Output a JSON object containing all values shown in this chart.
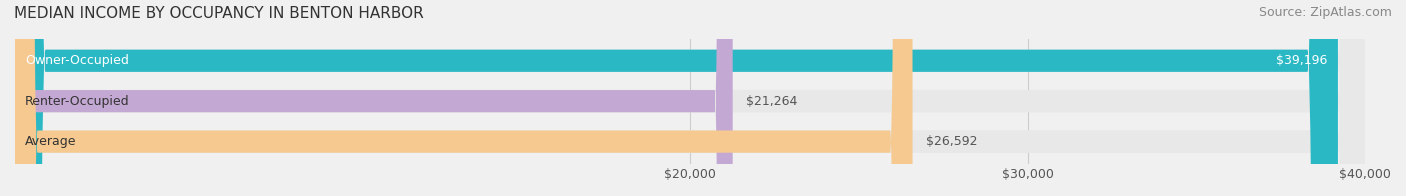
{
  "title": "MEDIAN INCOME BY OCCUPANCY IN BENTON HARBOR",
  "source": "Source: ZipAtlas.com",
  "categories": [
    "Owner-Occupied",
    "Renter-Occupied",
    "Average"
  ],
  "values": [
    39196,
    21264,
    26592
  ],
  "bar_colors": [
    "#2ab8c4",
    "#c4a8d4",
    "#f5c990"
  ],
  "bar_labels": [
    "$39,196",
    "$21,264",
    "$26,592"
  ],
  "label_inside": [
    true,
    false,
    false
  ],
  "xlim": [
    0,
    40000
  ],
  "xticks": [
    20000,
    30000,
    40000
  ],
  "xtick_labels": [
    "$20,000",
    "$30,000",
    "$40,000"
  ],
  "background_color": "#f0f0f0",
  "bar_bg_color": "#e8e8e8",
  "title_fontsize": 11,
  "source_fontsize": 9,
  "label_fontsize": 9,
  "tick_fontsize": 9,
  "bar_height": 0.55,
  "label_color": "#ffffff",
  "label_color_outside": "#555555"
}
